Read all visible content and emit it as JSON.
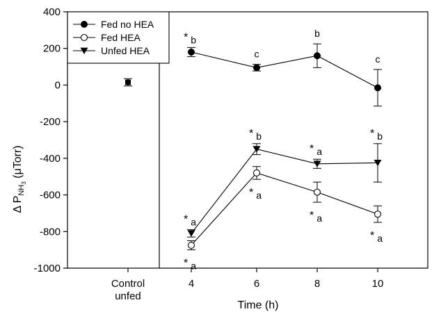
{
  "chart_data": {
    "type": "line",
    "xlabel": "Time (h)",
    "ylabel": {
      "prefix": "Δ P",
      "subscript": "NH",
      "subsubscript": "3",
      "suffix": " (μTorr)"
    },
    "ylim": [
      -1000,
      400
    ],
    "y_ticks": [
      400,
      200,
      0,
      -200,
      -400,
      -600,
      -800,
      -1000
    ],
    "x_ticks": [
      4,
      6,
      8,
      10
    ],
    "control": {
      "label_line1": "Control",
      "label_line2": "unfed",
      "value": 15,
      "error": 20
    },
    "legend_position": "top-left",
    "series": [
      {
        "name": "Fed no HEA",
        "marker": "filled-circle",
        "x": [
          4,
          6,
          8,
          10
        ],
        "y": [
          180,
          95,
          160,
          -15
        ],
        "error": [
          25,
          18,
          65,
          100
        ],
        "annotations": [
          {
            "x": 4,
            "star": "*",
            "letter": "b",
            "pos": "above"
          },
          {
            "x": 6,
            "star": "",
            "letter": "c",
            "pos": "above"
          },
          {
            "x": 8,
            "star": "",
            "letter": "b",
            "pos": "above"
          },
          {
            "x": 10,
            "star": "",
            "letter": "c",
            "pos": "above"
          }
        ]
      },
      {
        "name": "Fed HEA",
        "marker": "open-circle",
        "x": [
          4,
          6,
          8,
          10
        ],
        "y": [
          -875,
          -480,
          -585,
          -705
        ],
        "error": [
          25,
          35,
          55,
          45
        ],
        "annotations": [
          {
            "x": 4,
            "star": "*",
            "letter": "a",
            "pos": "below"
          },
          {
            "x": 6,
            "star": "*",
            "letter": "a",
            "pos": "below"
          },
          {
            "x": 8,
            "star": "*",
            "letter": "a",
            "pos": "below"
          },
          {
            "x": 10,
            "star": "*",
            "letter": "a",
            "pos": "below"
          }
        ]
      },
      {
        "name": "Unfed HEA",
        "marker": "filled-triangle-down",
        "x": [
          4,
          6,
          8,
          10
        ],
        "y": [
          -810,
          -350,
          -430,
          -425
        ],
        "error": [
          20,
          30,
          25,
          105
        ],
        "annotations": [
          {
            "x": 4,
            "star": "*",
            "letter": "a",
            "pos": "above"
          },
          {
            "x": 6,
            "star": "*",
            "letter": "b",
            "pos": "above"
          },
          {
            "x": 8,
            "star": "*",
            "letter": "a",
            "pos": "above"
          },
          {
            "x": 10,
            "star": "*",
            "letter": "b",
            "pos": "above"
          }
        ]
      }
    ]
  }
}
